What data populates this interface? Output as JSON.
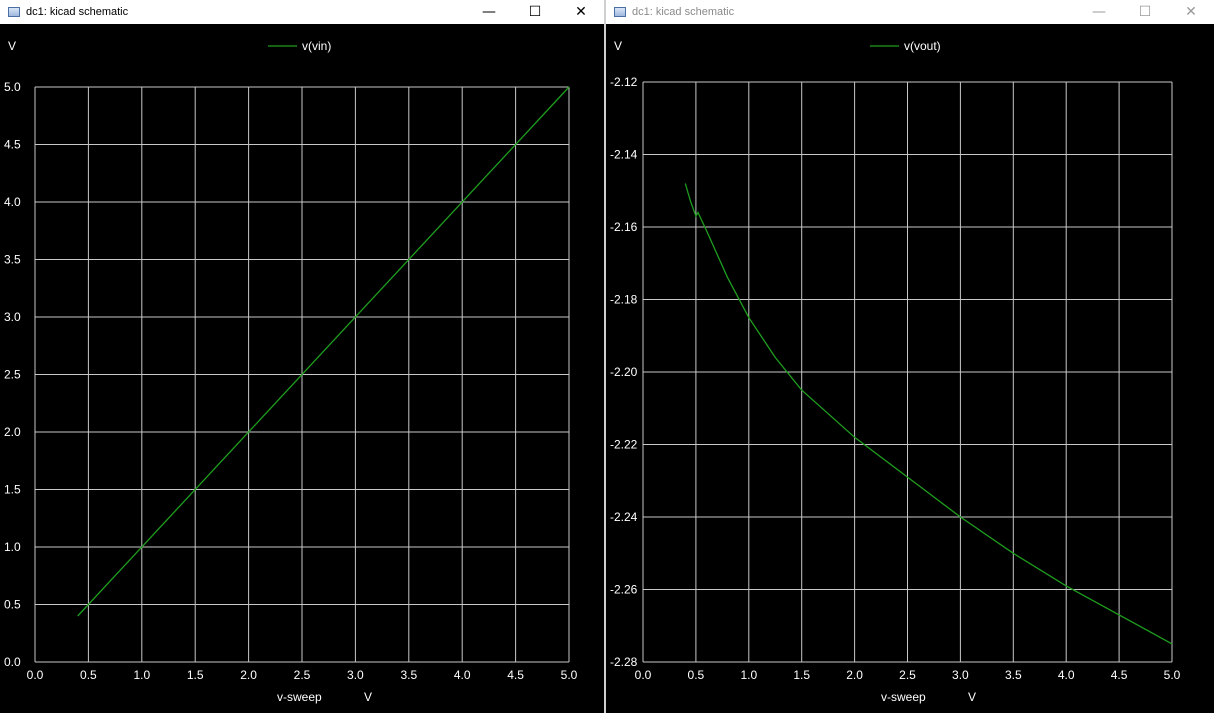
{
  "windows": [
    {
      "title": "dc1: kicad schematic",
      "controls": {
        "minimize": "—",
        "maximize": "☐",
        "close": "✕"
      },
      "plot": {
        "y_unit": "V",
        "legend": "v(vin)",
        "xlabel": "v-sweep",
        "xunit": "V",
        "x_ticks": [
          "0.0",
          "0.5",
          "1.0",
          "1.5",
          "2.0",
          "2.5",
          "3.0",
          "3.5",
          "4.0",
          "4.5",
          "5.0"
        ],
        "y_ticks": [
          "5.0",
          "4.5",
          "4.0",
          "3.5",
          "3.0",
          "2.5",
          "2.0",
          "1.5",
          "1.0",
          "0.5",
          "0.0"
        ]
      }
    },
    {
      "title": "dc1: kicad schematic",
      "controls": {
        "minimize": "—",
        "maximize": "☐",
        "close": "✕"
      },
      "plot": {
        "y_unit": "V",
        "legend": "v(vout)",
        "xlabel": "v-sweep",
        "xunit": "V",
        "x_ticks": [
          "0.0",
          "0.5",
          "1.0",
          "1.5",
          "2.0",
          "2.5",
          "3.0",
          "3.5",
          "4.0",
          "4.5",
          "5.0"
        ],
        "y_ticks": [
          "-2.12",
          "-2.14",
          "-2.16",
          "-2.18",
          "-2.20",
          "-2.22",
          "-2.24",
          "-2.26",
          "-2.28"
        ]
      }
    }
  ],
  "chart_data": [
    {
      "type": "line",
      "xlabel": "v-sweep",
      "ylabel": "V",
      "xlim": [
        0,
        5
      ],
      "ylim": [
        0,
        5
      ],
      "grid": true,
      "legend_position": "top-center",
      "color": "#1e9e1e",
      "series": [
        {
          "name": "v(vin)",
          "x": [
            0.4,
            5.0
          ],
          "y": [
            0.4,
            5.0
          ]
        }
      ]
    },
    {
      "type": "line",
      "xlabel": "v-sweep",
      "ylabel": "V",
      "xlim": [
        0,
        5
      ],
      "ylim": [
        -2.28,
        -2.12
      ],
      "grid": true,
      "legend_position": "top-center",
      "color": "#1e9e1e",
      "series": [
        {
          "name": "v(vout)",
          "x": [
            0.4,
            0.45,
            0.5,
            0.52,
            0.6,
            0.8,
            1.0,
            1.25,
            1.5,
            2.0,
            2.5,
            3.0,
            3.5,
            4.0,
            4.5,
            5.0
          ],
          "y": [
            -2.148,
            -2.153,
            -2.157,
            -2.156,
            -2.161,
            -2.174,
            -2.185,
            -2.196,
            -2.205,
            -2.218,
            -2.229,
            -2.24,
            -2.25,
            -2.259,
            -2.267,
            -2.275
          ]
        }
      ]
    }
  ]
}
